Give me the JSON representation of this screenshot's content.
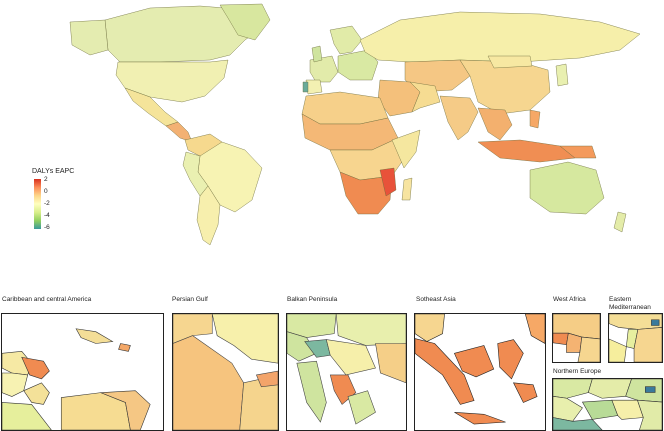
{
  "legend": {
    "title": "DALYs EAPC",
    "ticks": [
      "2",
      "0",
      "-2",
      "-4",
      "-6"
    ],
    "colors": {
      "high": "#d7301f",
      "mid_high": "#fc8d59",
      "mid": "#ffffbf",
      "mid_low": "#d9ef8b",
      "low": "#3a9a9c"
    }
  },
  "insets": [
    {
      "key": "caribbean",
      "title": "Caribbean and central America"
    },
    {
      "key": "persian",
      "title": "Persian Gulf"
    },
    {
      "key": "balkan",
      "title": "Balkan Peninsula"
    },
    {
      "key": "seasia",
      "title": "Sotheast Asia"
    },
    {
      "key": "westafrica",
      "title": "West Africa"
    },
    {
      "key": "emed",
      "title": "Eastern\nMediterranean"
    },
    {
      "key": "neurope",
      "title": "Northern Europe"
    }
  ]
}
